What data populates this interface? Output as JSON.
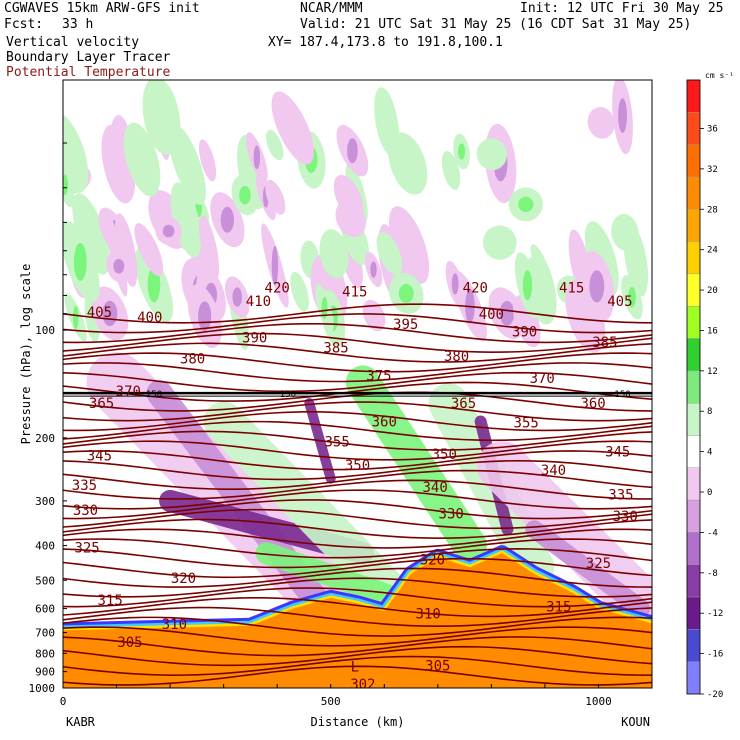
{
  "header": {
    "model": "CGWAVES 15km ARW-GFS init",
    "fcst_label": "Fcst:",
    "fcst_value": "33 h",
    "center": "NCAR/MMM",
    "init": "Init: 12 UTC Fri 30 May 25",
    "valid": "Valid: 21 UTC Sat 31 May 25 (16 CDT Sat 31 May 25)",
    "xy": "XY= 187.4,173.8 to 191.8,100.1",
    "field1": "Vertical velocity",
    "field2": "Boundary Layer Tracer",
    "field3": "Potential Temperature"
  },
  "colors": {
    "theta": "#7a0000",
    "field3_text": "#8b1a1a",
    "pos_light": "#c8f5c8",
    "pos_mid": "#7cf57c",
    "neg_light": "#f0c8f0",
    "neg_mid": "#c890d8",
    "neg_dark": "#7a2a90",
    "pbl_orange": "#ff8c00",
    "pbl_yellow": "#ffe000",
    "pbl_blue": "#3a3aff",
    "pbl_cyan": "#40c8ff",
    "tropopause": "#000000"
  },
  "chart_data": {
    "type": "heatmap",
    "title": "Vertical velocity",
    "xlabel": "Distance (km)",
    "ylabel": "Pressure (hPa), log scale",
    "xlim": [
      0,
      1100
    ],
    "ylim": [
      1000,
      20
    ],
    "log_y": true,
    "x_ticks": [
      0,
      500,
      1000
    ],
    "y_ticks": [
      100,
      200,
      300,
      400,
      500,
      600,
      700,
      800,
      900,
      1000
    ],
    "left_endpoint": "KABR",
    "right_endpoint": "KOUN",
    "tropopause_label": "150",
    "tropopause_pressure": 150,
    "isentropes": [
      {
        "label": "420",
        "x": 400,
        "p": 76
      },
      {
        "label": "420",
        "x": 770,
        "p": 76
      },
      {
        "label": "415",
        "x": 545,
        "p": 78
      },
      {
        "label": "415",
        "x": 950,
        "p": 76
      },
      {
        "label": "410",
        "x": 365,
        "p": 83
      },
      {
        "label": "405",
        "x": 68,
        "p": 89
      },
      {
        "label": "405",
        "x": 1040,
        "p": 83
      },
      {
        "label": "400",
        "x": 162,
        "p": 92
      },
      {
        "label": "400",
        "x": 800,
        "p": 90
      },
      {
        "label": "395",
        "x": 640,
        "p": 96
      },
      {
        "label": "390",
        "x": 358,
        "p": 105
      },
      {
        "label": "390",
        "x": 862,
        "p": 101
      },
      {
        "label": "385",
        "x": 510,
        "p": 112
      },
      {
        "label": "385",
        "x": 1012,
        "p": 108
      },
      {
        "label": "380",
        "x": 242,
        "p": 120
      },
      {
        "label": "380",
        "x": 735,
        "p": 118
      },
      {
        "label": "375",
        "x": 590,
        "p": 134
      },
      {
        "label": "370",
        "x": 122,
        "p": 148
      },
      {
        "label": "370",
        "x": 895,
        "p": 136
      },
      {
        "label": "365",
        "x": 72,
        "p": 160
      },
      {
        "label": "365",
        "x": 748,
        "p": 160
      },
      {
        "label": "360",
        "x": 600,
        "p": 180
      },
      {
        "label": "360",
        "x": 990,
        "p": 160
      },
      {
        "label": "355",
        "x": 512,
        "p": 205
      },
      {
        "label": "355",
        "x": 865,
        "p": 181
      },
      {
        "label": "350",
        "x": 550,
        "p": 238
      },
      {
        "label": "350",
        "x": 712,
        "p": 222
      },
      {
        "label": "345",
        "x": 68,
        "p": 224
      },
      {
        "label": "345",
        "x": 1036,
        "p": 218
      },
      {
        "label": "340",
        "x": 695,
        "p": 274
      },
      {
        "label": "340",
        "x": 916,
        "p": 246
      },
      {
        "label": "335",
        "x": 40,
        "p": 271
      },
      {
        "label": "335",
        "x": 1042,
        "p": 288
      },
      {
        "label": "330",
        "x": 42,
        "p": 318
      },
      {
        "label": "330",
        "x": 725,
        "p": 325
      },
      {
        "label": "330",
        "x": 1050,
        "p": 331
      },
      {
        "label": "325",
        "x": 45,
        "p": 405
      },
      {
        "label": "325",
        "x": 1000,
        "p": 447
      },
      {
        "label": "320",
        "x": 225,
        "p": 492
      },
      {
        "label": "320",
        "x": 690,
        "p": 438
      },
      {
        "label": "315",
        "x": 88,
        "p": 568
      },
      {
        "label": "315",
        "x": 926,
        "p": 592
      },
      {
        "label": "310",
        "x": 208,
        "p": 663
      },
      {
        "label": "310",
        "x": 682,
        "p": 619
      },
      {
        "label": "305",
        "x": 125,
        "p": 745
      },
      {
        "label": "305",
        "x": 700,
        "p": 866
      },
      {
        "label": "302",
        "x": 560,
        "p": 975
      }
    ],
    "pbl_top_pressure": [
      [
        0,
        690
      ],
      [
        350,
        670
      ],
      [
        430,
        600
      ],
      [
        500,
        560
      ],
      [
        550,
        580
      ],
      [
        600,
        610
      ],
      [
        650,
        480
      ],
      [
        700,
        430
      ],
      [
        760,
        460
      ],
      [
        820,
        420
      ],
      [
        880,
        480
      ],
      [
        950,
        540
      ],
      [
        1000,
        600
      ],
      [
        1100,
        660
      ]
    ],
    "annotation": "L"
  },
  "colorbar": {
    "unit": "cm s⁻¹",
    "labels": [
      "36",
      "32",
      "28",
      "24",
      "20",
      "16",
      "12",
      "8",
      "4",
      "0",
      "-4",
      "-8",
      "-12",
      "-16",
      "-20"
    ],
    "colors": [
      "#ff1a1a",
      "#ff4a1a",
      "#ff6e00",
      "#ff8c00",
      "#ffa500",
      "#ffd000",
      "#ffff2a",
      "#a0ff20",
      "#30d030",
      "#7ceb7c",
      "#c8f5c8",
      "#ffffff",
      "#f0c8f0",
      "#d8a0e0",
      "#b070cc",
      "#8a3ca6",
      "#6a1a8a",
      "#4a4ad0",
      "#8080ff"
    ]
  }
}
